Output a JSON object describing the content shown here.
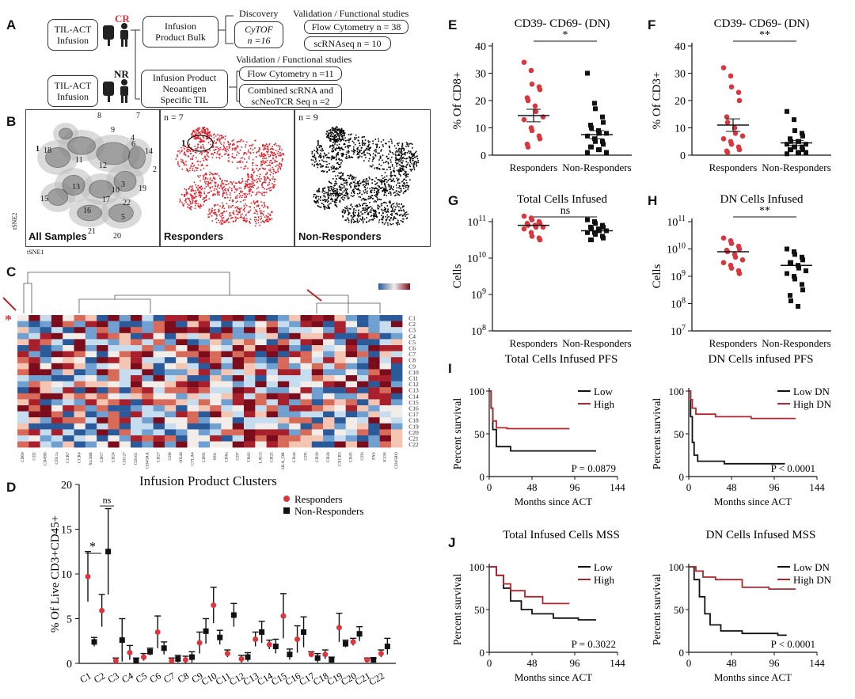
{
  "panelA": {
    "label": "A",
    "til1": "TIL-ACT\nInfusion",
    "til2": "TIL-ACT\nInfusion",
    "cr": "CR",
    "nr": "NR",
    "bulk": "Infusion\nProduct Bulk",
    "neo": "Infusion Product\nNeoantigen\nSpecific TIL",
    "discovery": "Discovery",
    "cytof": "CyTOF\nn =16",
    "validation1": "Validation / Functional studies",
    "flow1": "Flow Cytometry n = 38",
    "scrna": "scRNAseq n = 10",
    "validation2": "Validation / Functional studies",
    "flow2": "Flow Cytometry n =11",
    "combined": "Combined scRNA and\nscNeoTCR Seq n =2"
  },
  "panelB": {
    "label": "B",
    "all": "All Samples",
    "resp": "Responders",
    "nonresp": "Non-Responders",
    "n7": "n = 7",
    "n9": "n = 9",
    "one": "1",
    "tsne1": "tSNE1",
    "tsne2": "tSNE2",
    "clusters": [
      "1",
      "2",
      "3",
      "4",
      "5",
      "6",
      "7",
      "8",
      "9",
      "10",
      "11",
      "12",
      "13",
      "14",
      "15",
      "16",
      "17",
      "18",
      "19",
      "20",
      "21",
      "22"
    ]
  },
  "panelC": {
    "label": "C",
    "title": "Infusion Product Clusters",
    "star": "*",
    "rows": [
      "C1",
      "C2",
      "C3",
      "C4",
      "C5",
      "C6",
      "C7",
      "C8",
      "C9",
      "C10",
      "C11",
      "C12",
      "C13",
      "C14",
      "C15",
      "C16",
      "C17",
      "C18",
      "C19",
      "C20",
      "C21",
      "C22"
    ],
    "markers": [
      "CD69",
      "CD2",
      "CD49D",
      "CD11a",
      "CCR7",
      "CCR4",
      "X41BB",
      "CD57",
      "CD24",
      "CD127",
      "CD161",
      "CD45RA",
      "CD27",
      "CD8",
      "OX40",
      "CTLA4",
      "CD95",
      "PD1",
      "CD8a",
      "CD7",
      "TIM3",
      "LAG3",
      "CD25",
      "HLA_DR",
      "CD44",
      "CD5",
      "CD39",
      "CD28",
      "CXCR3",
      "CD45",
      "CD3",
      "FAS",
      "ICOS",
      "CD45RO"
    ]
  },
  "panelD": {
    "label": "D",
    "ylabel": "% Of Live CD3+CD45+",
    "legend_resp": "Responders",
    "legend_nonresp": "Non-Responders",
    "sig1": "*",
    "sig2": "ns"
  },
  "panelE": {
    "label": "E",
    "title": "CD39- CD69- (DN)",
    "ylabel": "% Of CD8+",
    "sig": "*"
  },
  "panelF": {
    "label": "F",
    "title": "CD39- CD69- (DN)",
    "ylabel": "% Of CD3+",
    "sig": "**"
  },
  "panelG": {
    "label": "G",
    "title": "Total Cells Infused",
    "ylabel": "Cells",
    "sig": "ns"
  },
  "panelH": {
    "label": "H",
    "title": "DN Cells Infused",
    "ylabel": "Cells",
    "sig": "**"
  },
  "panelI": {
    "label": "I",
    "title1": "Total Cells Infused PFS",
    "title2": "DN Cells infused PFS",
    "p1": "P = 0.0879",
    "p2": "P < 0.0001",
    "low": "Low",
    "high": "High",
    "lowdn": "Low DN",
    "highdn": "High DN"
  },
  "panelJ": {
    "label": "J",
    "title1": "Total Infused Cells MSS",
    "title2": "DN Cells Infused MSS",
    "p1": "P = 0.3022",
    "p2": "P < 0.0001",
    "low": "Low",
    "high": "High",
    "lowdn": "Low DN",
    "highdn": "High DN"
  },
  "km_axis": {
    "ylabel": "Percent survival",
    "xlabel": "Months since ACT"
  },
  "xcat": {
    "resp": "Responders",
    "nonresp": "Non-Responders"
  },
  "colors": {
    "responder": "#d9363e",
    "nonresponder": "#111111",
    "high": "#b5252b",
    "low": "#111111",
    "heat_hi": "#7a0c1c",
    "heat_lo": "#2a5a9a"
  },
  "chart_data": [
    {
      "type": "scatter",
      "panel": "E",
      "title": "CD39- CD69- (DN)",
      "ylabel": "% Of CD8+",
      "categories": [
        "Responders",
        "Non-Responders"
      ],
      "ylim": [
        0,
        40
      ],
      "yticks": [
        0,
        10,
        20,
        30,
        40
      ],
      "series": [
        {
          "name": "Responders",
          "mean": 14.5,
          "sem": 2.3,
          "values": [
            34,
            31,
            26,
            25,
            24,
            21,
            20,
            18,
            16,
            14,
            13,
            10,
            9,
            7,
            6,
            4,
            3
          ]
        },
        {
          "name": "Non-Responders",
          "mean": 7.5,
          "sem": 1.5,
          "values": [
            30,
            19,
            17,
            14,
            12,
            11,
            10,
            9,
            8,
            8,
            7,
            6,
            5,
            5,
            4,
            3,
            3,
            2,
            2,
            1,
            1
          ]
        }
      ]
    },
    {
      "type": "scatter",
      "panel": "F",
      "title": "CD39- CD69- (DN)",
      "ylabel": "% Of CD3+",
      "categories": [
        "Responders",
        "Non-Responders"
      ],
      "ylim": [
        0,
        40
      ],
      "yticks": [
        0,
        10,
        20,
        30,
        40
      ],
      "series": [
        {
          "name": "Responders",
          "mean": 11,
          "sem": 2.3,
          "values": [
            32,
            29,
            25,
            23,
            20,
            14,
            12,
            10,
            8,
            7,
            6,
            5,
            4,
            3,
            2,
            1.5,
            1
          ]
        },
        {
          "name": "Non-Responders",
          "mean": 4.5,
          "sem": 0.9,
          "values": [
            16,
            13,
            9,
            8,
            7,
            6,
            5,
            5,
            5,
            4,
            4,
            3,
            3,
            3,
            2,
            2,
            2,
            1,
            1,
            1,
            0.5
          ]
        }
      ]
    },
    {
      "type": "scatter",
      "panel": "G",
      "title": "Total Cells Infused",
      "ylabel": "Cells",
      "log": true,
      "categories": [
        "Responders",
        "Non-Responders"
      ],
      "ylim": [
        8,
        11
      ],
      "yticks": [
        8,
        9,
        10,
        11
      ],
      "series": [
        {
          "name": "Responders",
          "mean": 10.9,
          "values": [
            11.15,
            11.1,
            11.05,
            11.0,
            10.95,
            10.95,
            10.9,
            10.9,
            10.85,
            10.85,
            10.8,
            10.7,
            10.6,
            10.55,
            10.5
          ]
        },
        {
          "name": "Non-Responders",
          "mean": 10.75,
          "values": [
            11.05,
            11.0,
            10.95,
            10.9,
            10.85,
            10.85,
            10.8,
            10.8,
            10.75,
            10.75,
            10.7,
            10.7,
            10.65,
            10.6,
            10.55,
            10.5,
            10.5
          ]
        }
      ]
    },
    {
      "type": "scatter",
      "panel": "H",
      "title": "DN Cells Infused",
      "ylabel": "Cells",
      "log": true,
      "categories": [
        "Responders",
        "Non-Responders"
      ],
      "ylim": [
        7,
        11
      ],
      "yticks": [
        7,
        8,
        9,
        10,
        11
      ],
      "series": [
        {
          "name": "Responders",
          "mean": 9.9,
          "values": [
            10.4,
            10.3,
            10.2,
            10.1,
            10.0,
            9.95,
            9.9,
            9.8,
            9.7,
            9.6,
            9.5,
            9.4,
            9.3,
            9.2,
            9.1
          ]
        },
        {
          "name": "Non-Responders",
          "mean": 9.4,
          "values": [
            10.0,
            9.9,
            9.8,
            9.7,
            9.6,
            9.5,
            9.5,
            9.4,
            9.3,
            9.2,
            9.1,
            9.0,
            8.9,
            8.7,
            8.5,
            8.3,
            8.1,
            7.9
          ]
        }
      ]
    },
    {
      "type": "line",
      "panel": "D",
      "ylabel": "% Of Live CD3+CD45+",
      "categories": [
        "C1",
        "C2",
        "C3",
        "C4",
        "C5",
        "C6",
        "C7",
        "C8",
        "C9",
        "C10",
        "C11",
        "C12",
        "C13",
        "C14",
        "C15",
        "C16",
        "C17",
        "C18",
        "C19",
        "C20",
        "C21",
        "C22"
      ],
      "ylim": [
        0,
        20
      ],
      "yticks": [
        0,
        5,
        10,
        15,
        20
      ],
      "series": [
        {
          "name": "Responders",
          "values": [
            9.7,
            5.9,
            0.3,
            1.2,
            0.7,
            3.5,
            0.3,
            0.4,
            2.3,
            6.5,
            1.1,
            0.5,
            2.7,
            2.1,
            5.3,
            2.7,
            1.0,
            1.0,
            4.0,
            2.4,
            0.4,
            1.1
          ],
          "err": [
            2.8,
            1.8,
            0.3,
            0.8,
            0.4,
            1.8,
            0.3,
            0.4,
            1.2,
            2.0,
            0.4,
            0.4,
            0.8,
            0.5,
            2.5,
            1.5,
            0.3,
            0.5,
            1.6,
            0.4,
            0.2,
            0.4
          ]
        },
        {
          "name": "Non-Responders",
          "values": [
            2.4,
            12.5,
            2.6,
            0.3,
            1.3,
            1.7,
            0.5,
            0.7,
            3.6,
            2.9,
            5.4,
            0.7,
            3.5,
            1.9,
            1.0,
            3.5,
            0.6,
            0.4,
            2.2,
            3.3,
            0.4,
            1.9
          ],
          "err": [
            0.5,
            4.8,
            2.4,
            0.3,
            0.4,
            0.7,
            0.4,
            0.6,
            1.4,
            0.8,
            1.3,
            0.5,
            1.2,
            0.8,
            0.6,
            1.7,
            0.5,
            0.3,
            0.4,
            0.8,
            0.2,
            0.9
          ]
        }
      ]
    },
    {
      "type": "line",
      "panel": "I-left",
      "title": "Total Cells Infused PFS",
      "ylabel": "Percent survival",
      "xlabel": "Months since ACT",
      "xticks": [
        0,
        48,
        96,
        144
      ],
      "yticks": [
        0,
        50,
        100
      ],
      "series": [
        {
          "name": "Low",
          "points": [
            [
              0,
              100
            ],
            [
              2,
              80
            ],
            [
              4,
              55
            ],
            [
              8,
              35
            ],
            [
              24,
              30
            ],
            [
              60,
              30
            ],
            [
              120,
              30
            ]
          ]
        },
        {
          "name": "High",
          "points": [
            [
              0,
              100
            ],
            [
              2,
              80
            ],
            [
              4,
              65
            ],
            [
              8,
              57
            ],
            [
              20,
              56
            ],
            [
              90,
              56
            ]
          ]
        }
      ]
    },
    {
      "type": "line",
      "panel": "I-right",
      "title": "DN Cells infused PFS",
      "ylabel": "Percent survival",
      "xlabel": "Months since ACT",
      "xticks": [
        0,
        48,
        96,
        144
      ],
      "yticks": [
        0,
        50,
        100
      ],
      "series": [
        {
          "name": "Low DN",
          "points": [
            [
              0,
              100
            ],
            [
              2,
              70
            ],
            [
              4,
              40
            ],
            [
              6,
              25
            ],
            [
              10,
              18
            ],
            [
              40,
              15
            ],
            [
              100,
              15
            ],
            [
              108,
              15
            ]
          ]
        },
        {
          "name": "High DN",
          "points": [
            [
              0,
              100
            ],
            [
              2,
              90
            ],
            [
              4,
              80
            ],
            [
              8,
              73
            ],
            [
              30,
              70
            ],
            [
              70,
              68
            ],
            [
              120,
              68
            ]
          ]
        }
      ]
    },
    {
      "type": "line",
      "panel": "J-left",
      "title": "Total Infused Cells MSS",
      "ylabel": "Percent survival",
      "xlabel": "Months since ACT",
      "xticks": [
        0,
        48,
        96,
        144
      ],
      "yticks": [
        0,
        50,
        100
      ],
      "series": [
        {
          "name": "Low",
          "points": [
            [
              0,
              100
            ],
            [
              8,
              90
            ],
            [
              16,
              75
            ],
            [
              24,
              60
            ],
            [
              36,
              50
            ],
            [
              48,
              45
            ],
            [
              72,
              40
            ],
            [
              100,
              38
            ],
            [
              120,
              38
            ]
          ]
        },
        {
          "name": "High",
          "points": [
            [
              0,
              100
            ],
            [
              8,
              90
            ],
            [
              16,
              80
            ],
            [
              24,
              72
            ],
            [
              40,
              65
            ],
            [
              60,
              57
            ],
            [
              90,
              57
            ]
          ]
        }
      ]
    },
    {
      "type": "line",
      "panel": "J-right",
      "title": "DN Cells Infused MSS",
      "ylabel": "Percent survival",
      "xlabel": "Months since ACT",
      "xticks": [
        0,
        48,
        96,
        144
      ],
      "yticks": [
        0,
        50,
        100
      ],
      "series": [
        {
          "name": "Low DN",
          "points": [
            [
              0,
              100
            ],
            [
              6,
              85
            ],
            [
              12,
              65
            ],
            [
              18,
              45
            ],
            [
              24,
              32
            ],
            [
              36,
              25
            ],
            [
              60,
              22
            ],
            [
              100,
              20
            ],
            [
              110,
              20
            ]
          ]
        },
        {
          "name": "High DN",
          "points": [
            [
              0,
              100
            ],
            [
              8,
              95
            ],
            [
              16,
              88
            ],
            [
              30,
              85
            ],
            [
              60,
              76
            ],
            [
              90,
              74
            ],
            [
              120,
              74
            ]
          ]
        }
      ]
    }
  ]
}
